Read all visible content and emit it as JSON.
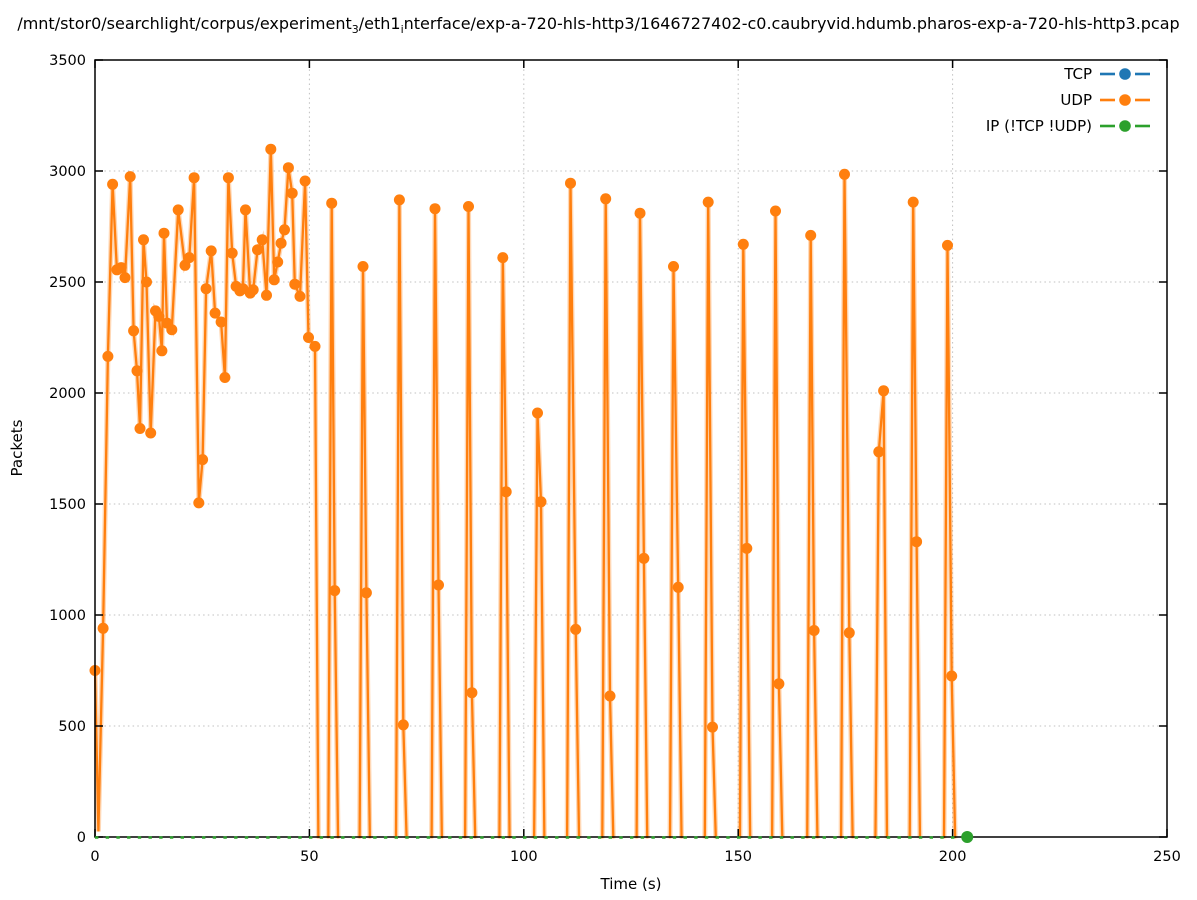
{
  "figure": {
    "title_segments": [
      {
        "text": "/mnt/stor0/searchlight/corpus/experiment"
      },
      {
        "sub": "3"
      },
      {
        "text": "/eth1"
      },
      {
        "sub": "i"
      },
      {
        "text": "nterface/exp-a-720-hls-http3/1646727402-c0.caubryvid.hdumb.pharos-exp-a-720-hls-http3.pcap"
      }
    ]
  },
  "chart_data": {
    "type": "line",
    "title": "/mnt/stor0/searchlight/corpus/experiment3/eth1interface/exp-a-720-hls-http3/1646727402-c0.caubryvid.hdumb.pharos-exp-a-720-hls-http3.pcap",
    "xlabel": "Time (s)",
    "ylabel": "Packets",
    "xlim": [
      0,
      250
    ],
    "ylim": [
      0,
      3500
    ],
    "xticks": [
      0,
      50,
      100,
      150,
      200,
      250
    ],
    "yticks": [
      0,
      500,
      1000,
      1500,
      2000,
      2500,
      3000,
      3500
    ],
    "grid": true,
    "legend_position": "top-right-inside",
    "series": [
      {
        "name": "TCP",
        "color": "#1f77b4",
        "style": "solid-with-markers",
        "points": []
      },
      {
        "name": "UDP",
        "color": "#ff7f0e",
        "style": "solid-with-markers",
        "points": [
          [
            0,
            750
          ],
          [
            0.8,
            25
          ],
          [
            1.9,
            940
          ],
          [
            3,
            2165
          ],
          [
            4.1,
            2940
          ],
          [
            5.1,
            2555
          ],
          [
            6.1,
            2565
          ],
          [
            7,
            2520
          ],
          [
            8.2,
            2975
          ],
          [
            9,
            2280
          ],
          [
            9.8,
            2100
          ],
          [
            10.5,
            1840
          ],
          [
            11.3,
            2690
          ],
          [
            12,
            2500
          ],
          [
            13,
            1820
          ],
          [
            14.1,
            2370
          ],
          [
            14.9,
            2345
          ],
          [
            15.6,
            2190
          ],
          [
            16.1,
            2720
          ],
          [
            16.8,
            2315
          ],
          [
            17.9,
            2285
          ],
          [
            19.4,
            2825
          ],
          [
            21,
            2575
          ],
          [
            22,
            2610
          ],
          [
            23.1,
            2970
          ],
          [
            24.2,
            1505
          ],
          [
            25.1,
            1700
          ],
          [
            25.9,
            2470
          ],
          [
            27.1,
            2640
          ],
          [
            28,
            2360
          ],
          [
            29.4,
            2320
          ],
          [
            30.3,
            2070
          ],
          [
            31.1,
            2970
          ],
          [
            32,
            2630
          ],
          [
            32.9,
            2480
          ],
          [
            33.8,
            2460
          ],
          [
            34.5,
            2470
          ],
          [
            35.1,
            2825
          ],
          [
            36.2,
            2450
          ],
          [
            36.9,
            2465
          ],
          [
            37.9,
            2645
          ],
          [
            39,
            2690
          ],
          [
            40,
            2440
          ],
          [
            41,
            3098
          ],
          [
            41.8,
            2510
          ],
          [
            42.6,
            2590
          ],
          [
            43.4,
            2675
          ],
          [
            44.2,
            2735
          ],
          [
            45.1,
            3015
          ],
          [
            46,
            2900
          ],
          [
            46.6,
            2490
          ],
          [
            47.8,
            2435
          ],
          [
            49,
            2955
          ],
          [
            49.8,
            2250
          ],
          [
            51.3,
            2210
          ],
          [
            52.1,
            0
          ],
          [
            54.4,
            0
          ],
          [
            55.2,
            2855
          ],
          [
            55.9,
            1110
          ],
          [
            56.7,
            0
          ],
          [
            61.7,
            0
          ],
          [
            62.5,
            2570
          ],
          [
            63.3,
            1100
          ],
          [
            64.1,
            0
          ],
          [
            70.2,
            0
          ],
          [
            71,
            2870
          ],
          [
            71.9,
            505
          ],
          [
            72.7,
            0
          ],
          [
            78.5,
            0
          ],
          [
            79.3,
            2830
          ],
          [
            80.1,
            1135
          ],
          [
            80.9,
            0
          ],
          [
            86.3,
            0
          ],
          [
            87.1,
            2840
          ],
          [
            87.9,
            650
          ],
          [
            88.7,
            0
          ],
          [
            94.3,
            0
          ],
          [
            95.1,
            2610
          ],
          [
            95.9,
            1555
          ],
          [
            96.7,
            0
          ],
          [
            102.4,
            0
          ],
          [
            103.2,
            1910
          ],
          [
            104,
            1510
          ],
          [
            104.8,
            0
          ],
          [
            110.1,
            0
          ],
          [
            110.9,
            2945
          ],
          [
            112.1,
            935
          ],
          [
            112.9,
            0
          ],
          [
            118.3,
            0
          ],
          [
            119.1,
            2875
          ],
          [
            120.1,
            635
          ],
          [
            120.9,
            0
          ],
          [
            126.3,
            0
          ],
          [
            127.1,
            2810
          ],
          [
            128,
            1255
          ],
          [
            128.8,
            0
          ],
          [
            134.1,
            0
          ],
          [
            134.9,
            2570
          ],
          [
            136,
            1125
          ],
          [
            136.8,
            0
          ],
          [
            142.2,
            0
          ],
          [
            143,
            2860
          ],
          [
            144,
            495
          ],
          [
            144.8,
            0
          ],
          [
            150.4,
            0
          ],
          [
            151.2,
            2670
          ],
          [
            152,
            1300
          ],
          [
            152.8,
            0
          ],
          [
            157.9,
            0
          ],
          [
            158.7,
            2820
          ],
          [
            159.5,
            690
          ],
          [
            160.3,
            0
          ],
          [
            166.1,
            0
          ],
          [
            166.9,
            2710
          ],
          [
            167.7,
            930
          ],
          [
            168.5,
            0
          ],
          [
            174,
            0
          ],
          [
            174.8,
            2985
          ],
          [
            175.9,
            920
          ],
          [
            176.7,
            0
          ],
          [
            182,
            0
          ],
          [
            182.8,
            1735
          ],
          [
            183.9,
            2010
          ],
          [
            184.7,
            0
          ],
          [
            190,
            0
          ],
          [
            190.8,
            2860
          ],
          [
            191.6,
            1330
          ],
          [
            192.4,
            0
          ],
          [
            198,
            0
          ],
          [
            198.8,
            2665
          ],
          [
            199.8,
            725
          ],
          [
            200.6,
            0
          ]
        ]
      },
      {
        "name": "IP (!TCP  !UDP)",
        "color": "#2ca02c",
        "style": "dashed",
        "last_point_marker": true,
        "points": [
          [
            0,
            0
          ],
          [
            203.4,
            0
          ]
        ]
      }
    ]
  }
}
